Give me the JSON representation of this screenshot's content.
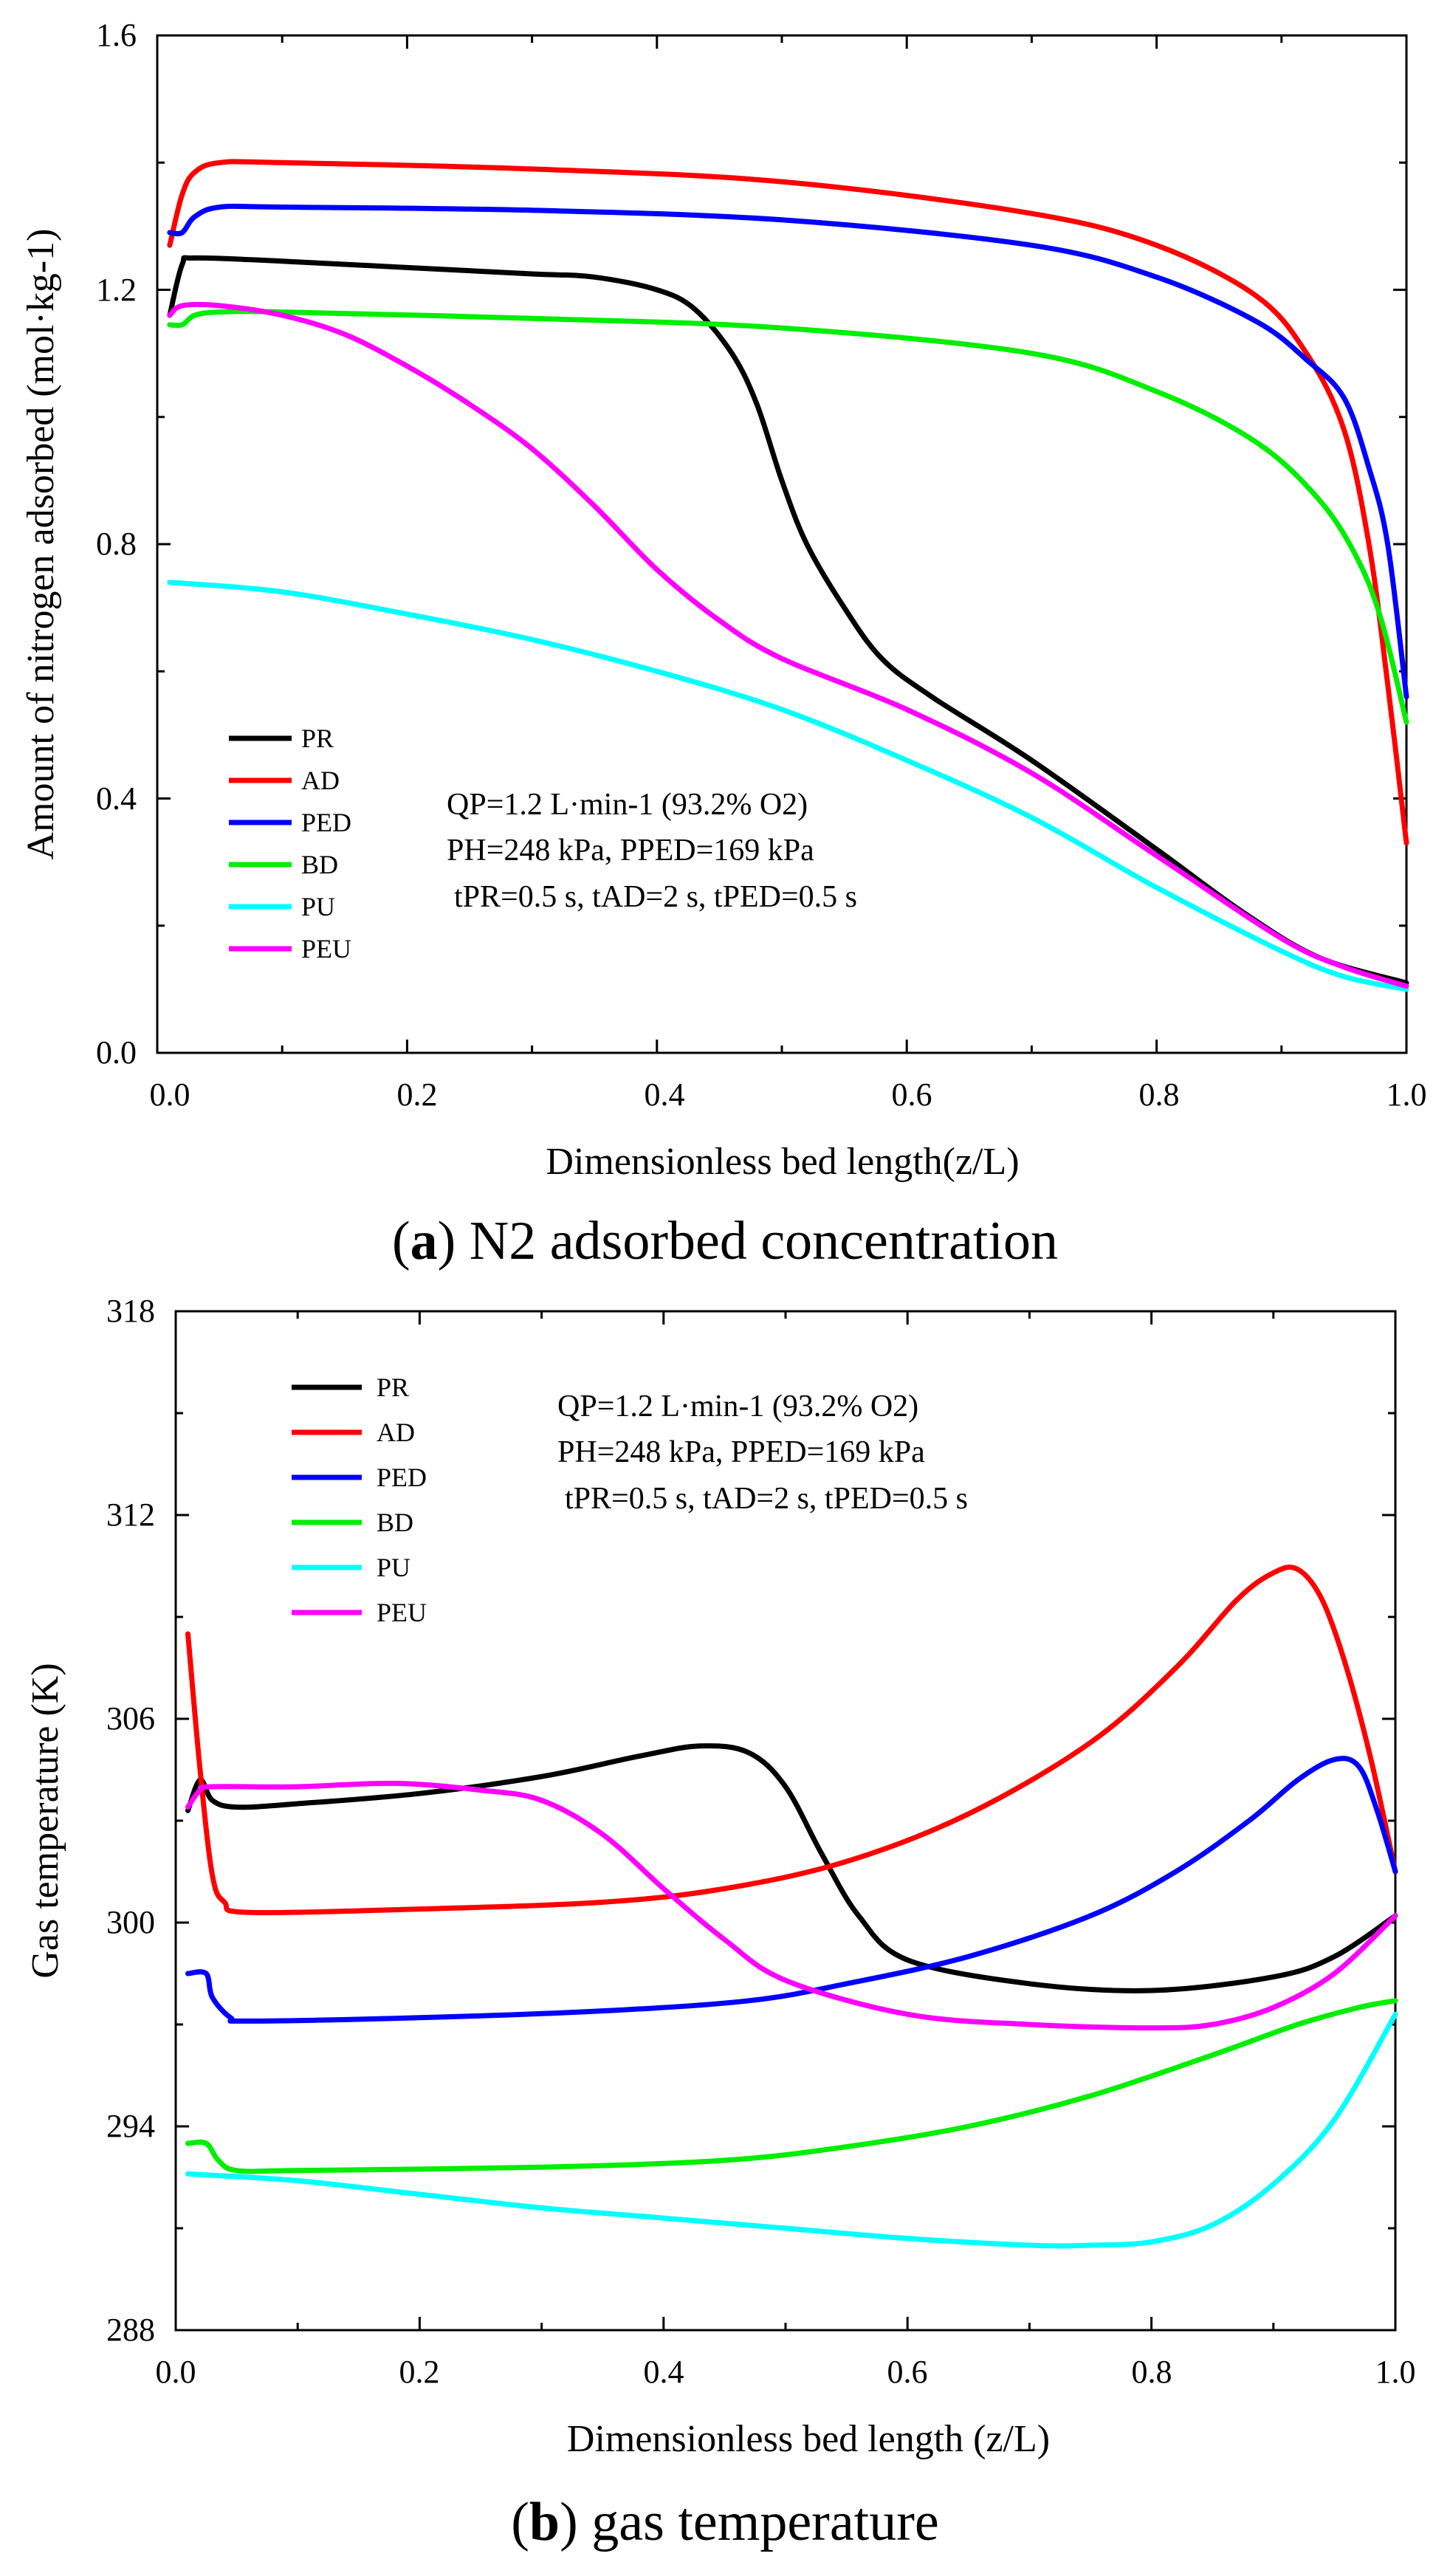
{
  "chart_data": [
    {
      "type": "line",
      "caption_label": "a",
      "caption_text": " N2 adsorbed concentration",
      "xlabel": "Dimensionless bed length(z/L)",
      "ylabel": "Amount of nitrogen adsorbed (mol·kg-1)",
      "xlim": [
        0.0,
        1.0
      ],
      "ylim": [
        0.0,
        1.6
      ],
      "xticks": [
        "0.0",
        "0.2",
        "0.4",
        "0.6",
        "0.8",
        "1.0"
      ],
      "yticks": [
        "0.0",
        "0.4",
        "0.8",
        "1.2",
        "1.6"
      ],
      "annotations": [
        "QP=1.2 L·min-1 (93.2% O2)",
        "PH=248 kPa, PPED=169 kPa",
        "tPR=0.5 s, tAD=2 s, tPED=0.5 s"
      ],
      "series": [
        {
          "name": "PR",
          "color": "#000000",
          "points": [
            [
              0.01,
              1.16
            ],
            [
              0.02,
              1.24
            ],
            [
              0.03,
              1.25
            ],
            [
              0.1,
              1.245
            ],
            [
              0.2,
              1.235
            ],
            [
              0.3,
              1.225
            ],
            [
              0.35,
              1.22
            ],
            [
              0.4,
              1.2
            ],
            [
              0.43,
              1.17
            ],
            [
              0.46,
              1.1
            ],
            [
              0.48,
              1.02
            ],
            [
              0.5,
              0.9
            ],
            [
              0.52,
              0.8
            ],
            [
              0.55,
              0.7
            ],
            [
              0.58,
              0.62
            ],
            [
              0.62,
              0.56
            ],
            [
              0.7,
              0.46
            ],
            [
              0.8,
              0.32
            ],
            [
              0.87,
              0.22
            ],
            [
              0.93,
              0.15
            ],
            [
              1.0,
              0.11
            ]
          ]
        },
        {
          "name": "AD",
          "color": "#ff0000",
          "points": [
            [
              0.01,
              1.27
            ],
            [
              0.02,
              1.35
            ],
            [
              0.03,
              1.385
            ],
            [
              0.05,
              1.4
            ],
            [
              0.1,
              1.4
            ],
            [
              0.3,
              1.39
            ],
            [
              0.5,
              1.37
            ],
            [
              0.7,
              1.32
            ],
            [
              0.8,
              1.27
            ],
            [
              0.88,
              1.19
            ],
            [
              0.92,
              1.1
            ],
            [
              0.95,
              0.98
            ],
            [
              0.97,
              0.8
            ],
            [
              0.985,
              0.58
            ],
            [
              1.0,
              0.33
            ]
          ]
        },
        {
          "name": "PED",
          "color": "#0000ff",
          "points": [
            [
              0.01,
              1.29
            ],
            [
              0.02,
              1.29
            ],
            [
              0.03,
              1.315
            ],
            [
              0.05,
              1.33
            ],
            [
              0.1,
              1.33
            ],
            [
              0.3,
              1.325
            ],
            [
              0.5,
              1.31
            ],
            [
              0.7,
              1.27
            ],
            [
              0.8,
              1.22
            ],
            [
              0.88,
              1.15
            ],
            [
              0.92,
              1.09
            ],
            [
              0.95,
              1.03
            ],
            [
              0.97,
              0.92
            ],
            [
              0.985,
              0.8
            ],
            [
              1.0,
              0.56
            ]
          ]
        },
        {
          "name": "BD",
          "color": "#00ee00",
          "points": [
            [
              0.01,
              1.145
            ],
            [
              0.02,
              1.145
            ],
            [
              0.03,
              1.16
            ],
            [
              0.05,
              1.165
            ],
            [
              0.1,
              1.165
            ],
            [
              0.3,
              1.155
            ],
            [
              0.5,
              1.14
            ],
            [
              0.7,
              1.1
            ],
            [
              0.8,
              1.04
            ],
            [
              0.88,
              0.96
            ],
            [
              0.93,
              0.87
            ],
            [
              0.96,
              0.78
            ],
            [
              0.98,
              0.68
            ],
            [
              1.0,
              0.52
            ]
          ]
        },
        {
          "name": "PU",
          "color": "#00ffff",
          "points": [
            [
              0.01,
              0.74
            ],
            [
              0.1,
              0.725
            ],
            [
              0.2,
              0.69
            ],
            [
              0.3,
              0.65
            ],
            [
              0.4,
              0.6
            ],
            [
              0.5,
              0.54
            ],
            [
              0.6,
              0.46
            ],
            [
              0.7,
              0.37
            ],
            [
              0.8,
              0.26
            ],
            [
              0.9,
              0.16
            ],
            [
              0.95,
              0.12
            ],
            [
              1.0,
              0.1
            ]
          ]
        },
        {
          "name": "PEU",
          "color": "#ff00ff",
          "points": [
            [
              0.01,
              1.16
            ],
            [
              0.02,
              1.175
            ],
            [
              0.05,
              1.175
            ],
            [
              0.1,
              1.16
            ],
            [
              0.15,
              1.13
            ],
            [
              0.2,
              1.08
            ],
            [
              0.25,
              1.02
            ],
            [
              0.3,
              0.95
            ],
            [
              0.35,
              0.86
            ],
            [
              0.4,
              0.76
            ],
            [
              0.45,
              0.68
            ],
            [
              0.5,
              0.62
            ],
            [
              0.6,
              0.54
            ],
            [
              0.7,
              0.44
            ],
            [
              0.8,
              0.31
            ],
            [
              0.9,
              0.18
            ],
            [
              0.95,
              0.135
            ],
            [
              1.0,
              0.105
            ]
          ]
        }
      ]
    },
    {
      "type": "line",
      "caption_label": "b",
      "caption_text": " gas temperature",
      "xlabel": "Dimensionless bed length (z/L)",
      "ylabel": "Gas temperature (K)",
      "xlim": [
        0.0,
        1.0
      ],
      "ylim": [
        288,
        318
      ],
      "xticks": [
        "0.0",
        "0.2",
        "0.4",
        "0.6",
        "0.8",
        "1.0"
      ],
      "yticks": [
        "288",
        "294",
        "300",
        "306",
        "312",
        "318"
      ],
      "annotations": [
        "QP=1.2 L·min-1 (93.2% O2)",
        "PH=248 kPa, PPED=169 kPa",
        "tPR=0.5 s, tAD=2 s, tPED=0.5 s"
      ],
      "series": [
        {
          "name": "PR",
          "color": "#000000",
          "points": [
            [
              0.01,
              303.3
            ],
            [
              0.02,
              304.2
            ],
            [
              0.03,
              303.6
            ],
            [
              0.05,
              303.4
            ],
            [
              0.1,
              303.5
            ],
            [
              0.2,
              303.8
            ],
            [
              0.3,
              304.3
            ],
            [
              0.38,
              304.9
            ],
            [
              0.43,
              305.2
            ],
            [
              0.47,
              305.0
            ],
            [
              0.5,
              304.0
            ],
            [
              0.53,
              302.0
            ],
            [
              0.56,
              300.2
            ],
            [
              0.6,
              298.9
            ],
            [
              0.7,
              298.2
            ],
            [
              0.8,
              298.0
            ],
            [
              0.9,
              298.4
            ],
            [
              0.95,
              299.0
            ],
            [
              1.0,
              300.2
            ]
          ]
        },
        {
          "name": "AD",
          "color": "#ff0000",
          "points": [
            [
              0.01,
              308.5
            ],
            [
              0.02,
              304.5
            ],
            [
              0.03,
              301.4
            ],
            [
              0.04,
              300.6
            ],
            [
              0.06,
              300.3
            ],
            [
              0.2,
              300.4
            ],
            [
              0.35,
              300.6
            ],
            [
              0.45,
              301.0
            ],
            [
              0.55,
              301.8
            ],
            [
              0.65,
              303.2
            ],
            [
              0.75,
              305.3
            ],
            [
              0.82,
              307.5
            ],
            [
              0.87,
              309.5
            ],
            [
              0.9,
              310.3
            ],
            [
              0.92,
              310.4
            ],
            [
              0.94,
              309.5
            ],
            [
              0.96,
              307.5
            ],
            [
              0.98,
              304.8
            ],
            [
              1.0,
              301.5
            ]
          ]
        },
        {
          "name": "PED",
          "color": "#0000ff",
          "points": [
            [
              0.01,
              298.5
            ],
            [
              0.025,
              298.5
            ],
            [
              0.03,
              297.8
            ],
            [
              0.045,
              297.2
            ],
            [
              0.06,
              297.1
            ],
            [
              0.2,
              297.2
            ],
            [
              0.35,
              297.4
            ],
            [
              0.47,
              297.7
            ],
            [
              0.55,
              298.2
            ],
            [
              0.65,
              299.0
            ],
            [
              0.75,
              300.2
            ],
            [
              0.82,
              301.5
            ],
            [
              0.88,
              303.0
            ],
            [
              0.92,
              304.2
            ],
            [
              0.95,
              304.8
            ],
            [
              0.97,
              304.6
            ],
            [
              0.985,
              303.3
            ],
            [
              1.0,
              301.5
            ]
          ]
        },
        {
          "name": "BD",
          "color": "#00ee00",
          "points": [
            [
              0.01,
              293.5
            ],
            [
              0.025,
              293.5
            ],
            [
              0.035,
              293.0
            ],
            [
              0.05,
              292.7
            ],
            [
              0.1,
              292.7
            ],
            [
              0.3,
              292.8
            ],
            [
              0.45,
              293.0
            ],
            [
              0.55,
              293.4
            ],
            [
              0.65,
              294.0
            ],
            [
              0.75,
              294.9
            ],
            [
              0.85,
              296.1
            ],
            [
              0.92,
              297.0
            ],
            [
              0.97,
              297.5
            ],
            [
              1.0,
              297.7
            ]
          ]
        },
        {
          "name": "PU",
          "color": "#00ffff",
          "points": [
            [
              0.01,
              292.6
            ],
            [
              0.1,
              292.4
            ],
            [
              0.2,
              292.0
            ],
            [
              0.3,
              291.6
            ],
            [
              0.4,
              291.3
            ],
            [
              0.5,
              291.0
            ],
            [
              0.6,
              290.7
            ],
            [
              0.7,
              290.5
            ],
            [
              0.75,
              290.5
            ],
            [
              0.8,
              290.6
            ],
            [
              0.85,
              291.1
            ],
            [
              0.9,
              292.3
            ],
            [
              0.95,
              294.2
            ],
            [
              1.0,
              297.3
            ]
          ]
        },
        {
          "name": "PEU",
          "color": "#ff00ff",
          "points": [
            [
              0.01,
              303.4
            ],
            [
              0.02,
              303.9
            ],
            [
              0.03,
              304.0
            ],
            [
              0.1,
              304.0
            ],
            [
              0.18,
              304.1
            ],
            [
              0.25,
              303.9
            ],
            [
              0.3,
              303.6
            ],
            [
              0.35,
              302.6
            ],
            [
              0.4,
              301.0
            ],
            [
              0.45,
              299.5
            ],
            [
              0.5,
              298.3
            ],
            [
              0.6,
              297.3
            ],
            [
              0.7,
              297.0
            ],
            [
              0.8,
              296.9
            ],
            [
              0.85,
              297.0
            ],
            [
              0.9,
              297.5
            ],
            [
              0.95,
              298.5
            ],
            [
              1.0,
              300.2
            ]
          ]
        }
      ]
    }
  ]
}
